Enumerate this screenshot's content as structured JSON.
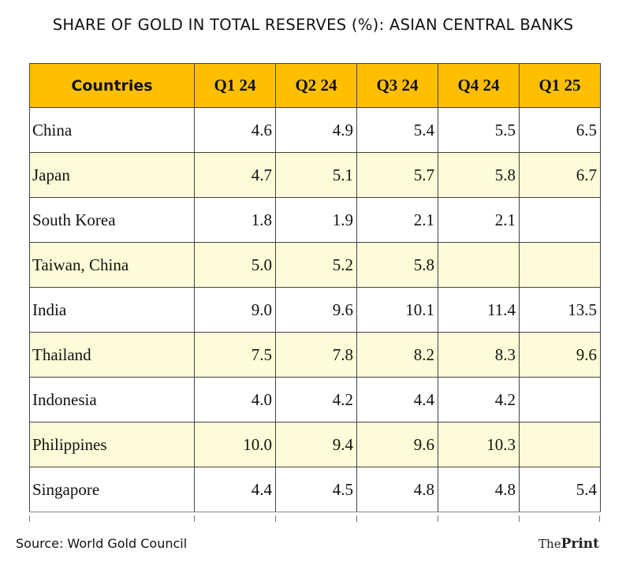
{
  "title": "SHARE OF GOLD IN TOTAL RESERVES (%): ASIAN CENTRAL BANKS",
  "source": "Source: World Gold Council",
  "brand": {
    "part1": "The",
    "part2": "Print"
  },
  "colors": {
    "header_bg": "#ffbf00",
    "alt_row_bg": "#fefcd8"
  },
  "chart_data": {
    "type": "table",
    "title": "SHARE OF GOLD IN TOTAL RESERVES (%): ASIAN CENTRAL BANKS",
    "columns": [
      "Countries",
      "Q1 24",
      "Q2 24",
      "Q3 24",
      "Q4 24",
      "Q1 25"
    ],
    "rows": [
      {
        "country": "China",
        "values": [
          "4.6",
          "4.9",
          "5.4",
          "5.5",
          "6.5"
        ]
      },
      {
        "country": "Japan",
        "values": [
          "4.7",
          "5.1",
          "5.7",
          "5.8",
          "6.7"
        ]
      },
      {
        "country": "South Korea",
        "values": [
          "1.8",
          "1.9",
          "2.1",
          "2.1",
          ""
        ]
      },
      {
        "country": "Taiwan, China",
        "values": [
          "5.0",
          "5.2",
          "5.8",
          "",
          ""
        ]
      },
      {
        "country": "India",
        "values": [
          "9.0",
          "9.6",
          "10.1",
          "11.4",
          "13.5"
        ]
      },
      {
        "country": "Thailand",
        "values": [
          "7.5",
          "7.8",
          "8.2",
          "8.3",
          "9.6"
        ]
      },
      {
        "country": "Indonesia",
        "values": [
          "4.0",
          "4.2",
          "4.4",
          "4.2",
          ""
        ]
      },
      {
        "country": "Philippines",
        "values": [
          "10.0",
          "9.4",
          "9.6",
          "10.3",
          ""
        ]
      },
      {
        "country": "Singapore",
        "values": [
          "4.4",
          "4.5",
          "4.8",
          "4.8",
          "5.4"
        ]
      }
    ]
  }
}
